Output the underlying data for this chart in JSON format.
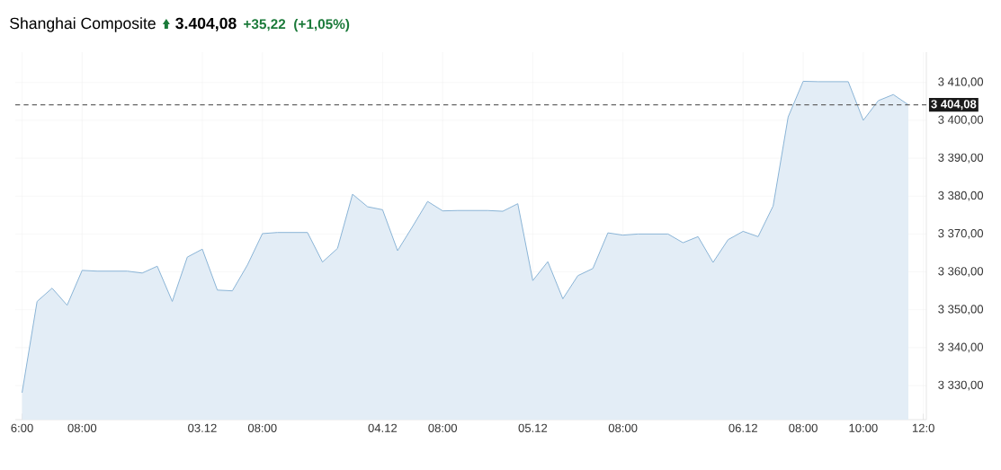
{
  "chart_data": {
    "type": "area",
    "title": "Shanghai Composite",
    "annotations": [
      "3.404,08",
      "+35,22",
      "(+1,05%)"
    ],
    "categories": [
      "6:00",
      null,
      null,
      null,
      "08:00",
      null,
      null,
      null,
      null,
      null,
      null,
      null,
      "03.12",
      null,
      null,
      null,
      "08:00",
      null,
      null,
      null,
      null,
      null,
      null,
      null,
      "04.12",
      null,
      null,
      null,
      "08:00",
      null,
      null,
      null,
      null,
      null,
      "05.12",
      null,
      null,
      null,
      null,
      null,
      "08:00",
      null,
      null,
      null,
      null,
      null,
      null,
      null,
      "06.12",
      null,
      null,
      null,
      "08:00",
      null,
      null,
      null,
      "10:00",
      null,
      null,
      null,
      "12:0"
    ],
    "series": [
      {
        "color": "#8ab4d6",
        "values": [
          3328.1,
          3352.2,
          3355.7,
          3351.2,
          3360.4,
          3360.2,
          3360.2,
          3360.2,
          3359.7,
          3361.5,
          3352.2,
          3363.9,
          3366.0,
          3355.2,
          3355.0,
          3361.8,
          3370.1,
          3370.4,
          3370.4,
          3370.4,
          3362.6,
          3366.2,
          3380.5,
          3377.2,
          3376.4,
          3365.6,
          3372.0,
          3378.6,
          3376.1,
          3376.2,
          3376.2,
          3376.2,
          3376.0,
          3378.0,
          3357.7,
          3362.7,
          3352.9,
          3359.0,
          3360.9,
          3370.3,
          3369.7,
          3370.0,
          3370.0,
          3370.0,
          3367.7,
          3369.3,
          3362.5,
          3368.5,
          3370.7,
          3369.3,
          3377.4,
          3400.9,
          3410.3,
          3410.2,
          3410.2,
          3410.2,
          3400.0,
          3405.2,
          3406.8,
          3404.1,
          null
        ]
      }
    ],
    "ylim": [
      3321,
      3418
    ],
    "yticks": [
      {
        "value": 3330,
        "label": "3 330,00"
      },
      {
        "value": 3340,
        "label": "3 340,00"
      },
      {
        "value": 3350,
        "label": "3 350,00"
      },
      {
        "value": 3360,
        "label": "3 360,00"
      },
      {
        "value": 3370,
        "label": "3 370,00"
      },
      {
        "value": 3380,
        "label": "3 380,00"
      },
      {
        "value": 3390,
        "label": "3 390,00"
      },
      {
        "value": 3400,
        "label": "3 400,00"
      },
      {
        "value": 3410,
        "label": "3 410,00"
      }
    ],
    "ref_lines": [
      {
        "axis": "y",
        "value": 3404.08,
        "label": "3 404,08",
        "color": "#666666",
        "line_style": "dashed"
      }
    ],
    "grid": true
  }
}
